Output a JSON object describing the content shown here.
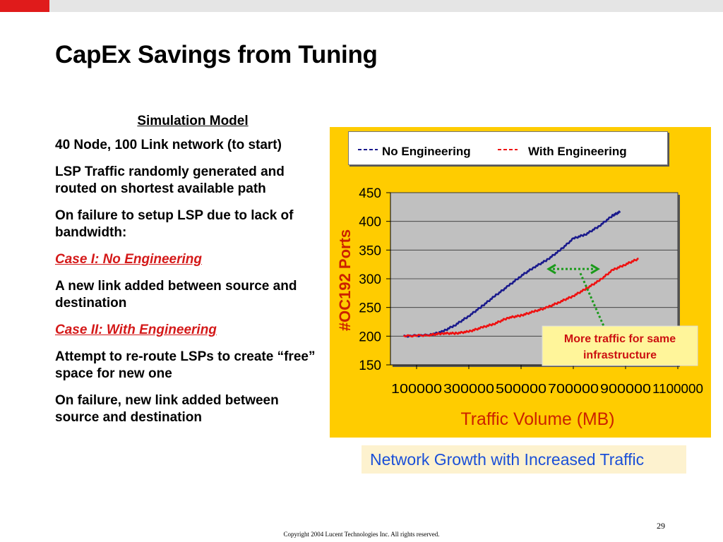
{
  "slide": {
    "title": "CapEx Savings from Tuning",
    "page_number": "29",
    "copyright": "Copyright 2004 Lucent Technologies Inc.  All rights reserved."
  },
  "left_text": {
    "heading": "Simulation Model",
    "paragraphs": [
      "40 Node, 100 Link network (to start)",
      "LSP Traffic randomly generated and routed on shortest available path",
      "On failure to setup LSP due to lack of bandwidth:",
      "Case I: No Engineering",
      "A new link added between source and destination",
      "Case II: With Engineering",
      "Attempt to re-route LSPs to create “free” space for new one",
      "On failure, new link added between source and destination"
    ]
  },
  "caption": "Network Growth with Increased Traffic",
  "colors": {
    "title_bar_accent": "#e01b1b",
    "chart_panel": "#ffcc00",
    "plot_area": "#c0c0c0",
    "series_no_engineering": "#1a1a8c",
    "series_with_engineering": "#ee1111",
    "annotation_arrow": "#1a9a1a",
    "case_text": "#d41919",
    "caption_text": "#1a4fd8"
  },
  "chart_data": {
    "type": "line",
    "title": "",
    "xlabel": "Traffic Volume (MB)",
    "ylabel": "#OC192 Ports",
    "xlim": [
      0,
      1100000
    ],
    "ylim": [
      150,
      450
    ],
    "x_ticks": [
      100000,
      300000,
      500000,
      700000,
      900000,
      1100000
    ],
    "x_tick_labels": [
      "100000",
      "300000",
      "500000",
      "700000",
      "900000",
      "1100000"
    ],
    "y_ticks": [
      150,
      200,
      250,
      300,
      350,
      400,
      450
    ],
    "y_tick_labels": [
      "150",
      "200",
      "250",
      "300",
      "350",
      "400",
      "450"
    ],
    "grid": "horizontal",
    "legend_placement": "top",
    "series": [
      {
        "name": "No Engineering",
        "color": "#1a1a8c",
        "x": [
          50000,
          150000,
          200000,
          250000,
          300000,
          350000,
          400000,
          450000,
          500000,
          550000,
          600000,
          650000,
          700000,
          750000,
          800000,
          850000,
          880000
        ],
        "y": [
          200,
          202,
          208,
          220,
          235,
          252,
          270,
          287,
          305,
          320,
          333,
          350,
          370,
          378,
          392,
          410,
          417
        ]
      },
      {
        "name": "With Engineering",
        "color": "#ee1111",
        "x": [
          50000,
          150000,
          200000,
          250000,
          300000,
          350000,
          400000,
          450000,
          500000,
          550000,
          600000,
          650000,
          700000,
          750000,
          800000,
          850000,
          900000,
          950000
        ],
        "y": [
          200,
          202,
          205,
          205,
          208,
          215,
          222,
          232,
          236,
          243,
          250,
          260,
          270,
          283,
          297,
          315,
          325,
          335
        ]
      }
    ],
    "annotations": [
      {
        "text": "More traffic for same infrastructure",
        "arrow_y": 317,
        "arrow_x_from": 600000,
        "arrow_x_to": 800000
      }
    ]
  }
}
